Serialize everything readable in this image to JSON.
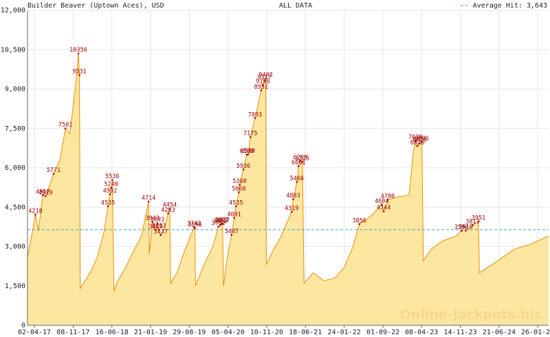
{
  "chart_data": {
    "type": "area",
    "title": "Builder Beaver (Uptown Aces), USD",
    "subtitle": "ALL DATA",
    "watermark": "Online-Jackpots.biz",
    "fill_color": "#fde7a0",
    "line_color": "#f08a00",
    "annotation_color": "#a00000",
    "grid": true,
    "average": {
      "value": 3643,
      "label": "Average Hit: 3,643",
      "color": "#3b9ccc"
    },
    "ylim": [
      0,
      12000
    ],
    "yticks": [
      0,
      {
        "value": 1500,
        "label": "1,500"
      },
      {
        "value": 3000,
        "label": "3,000"
      },
      {
        "value": 4500,
        "label": "4,500"
      },
      {
        "value": 6000,
        "label": "6,000"
      },
      {
        "value": 7500,
        "label": "7,500"
      },
      {
        "value": 9000,
        "label": "9,000"
      },
      {
        "value": 10500,
        "label": "10,500"
      },
      {
        "value": 12000,
        "label": "12,000"
      }
    ],
    "xlim": [
      "2017-02-22",
      "2025-03-29"
    ],
    "xticks": [
      {
        "value": "2017-04-02",
        "label": "02-04-17"
      },
      {
        "value": "2017-11-08",
        "label": "08-11-17"
      },
      {
        "value": "2018-06-16",
        "label": "16-06-18"
      },
      {
        "value": "2019-01-21",
        "label": "21-01-19"
      },
      {
        "value": "2019-08-29",
        "label": "29-08-19"
      },
      {
        "value": "2020-04-05",
        "label": "05-04-20"
      },
      {
        "value": "2020-11-10",
        "label": "10-11-20"
      },
      {
        "value": "2021-06-18",
        "label": "18-06-21"
      },
      {
        "value": "2022-01-24",
        "label": "24-01-22"
      },
      {
        "value": "2022-09-01",
        "label": "01-09-22"
      },
      {
        "value": "2023-04-08",
        "label": "08-04-23"
      },
      {
        "value": "2023-11-14",
        "label": "14-11-23"
      },
      {
        "value": "2024-06-21",
        "label": "21-06-24"
      },
      {
        "value": "2025-01-26",
        "label": "26-01-25"
      }
    ],
    "x": [
      "2017-02-22",
      "2017-03-20",
      "2017-04-08",
      "2017-04-25",
      "2017-05-20",
      "2017-06-05",
      "2017-06-20",
      "2017-07-20",
      "2017-08-25",
      "2017-09-25",
      "2017-10-20",
      "2017-11-20",
      "2017-12-08",
      "2017-12-14",
      "2017-12-18",
      "2018-01-15",
      "2018-02-20",
      "2018-03-25",
      "2018-04-30",
      "2018-05-25",
      "2018-06-05",
      "2018-06-12",
      "2018-06-18",
      "2018-06-28",
      "2018-07-20",
      "2018-09-01",
      "2018-10-15",
      "2018-12-01",
      "2019-01-10",
      "2019-01-14",
      "2019-02-01",
      "2019-02-20",
      "2019-03-01",
      "2019-03-10",
      "2019-03-20",
      "2019-04-10",
      "2019-05-01",
      "2019-05-10",
      "2019-05-15",
      "2019-06-20",
      "2019-08-01",
      "2019-09-25",
      "2019-09-30",
      "2019-10-03",
      "2019-11-20",
      "2020-01-10",
      "2020-02-10",
      "2020-02-20",
      "2020-02-28",
      "2020-03-05",
      "2020-03-10",
      "2020-04-01",
      "2020-04-25",
      "2020-05-10",
      "2020-05-20",
      "2020-06-05",
      "2020-06-10",
      "2020-07-01",
      "2020-07-20",
      "2020-07-28",
      "2020-08-10",
      "2020-09-05",
      "2020-10-10",
      "2020-10-20",
      "2020-10-28",
      "2020-11-05",
      "2020-11-08",
      "2020-12-20",
      "2021-02-01",
      "2021-03-10",
      "2021-04-01",
      "2021-04-10",
      "2021-05-01",
      "2021-05-10",
      "2021-05-20",
      "2021-06-01",
      "2021-06-10",
      "2021-08-01",
      "2021-10-01",
      "2021-12-01",
      "2022-01-24",
      "2022-03-15",
      "2022-04-20",
      "2022-07-01",
      "2022-08-25",
      "2022-09-05",
      "2022-09-28",
      "2022-12-01",
      "2023-01-27",
      "2023-02-20",
      "2023-03-04",
      "2023-03-15",
      "2023-03-28",
      "2023-04-10",
      "2023-04-18",
      "2023-06-01",
      "2023-08-01",
      "2023-10-20",
      "2023-11-20",
      "2023-12-15",
      "2024-01-01",
      "2024-01-23",
      "2024-02-25",
      "2024-03-01",
      "2024-06-01",
      "2024-09-15",
      "2024-12-20",
      "2025-03-29"
    ],
    "values": [
      2600,
      3500,
      4218,
      3600,
      4957,
      4919,
      5200,
      5771,
      6300,
      7501,
      7300,
      9000,
      10356,
      9531,
      1400,
      1700,
      2100,
      2600,
      3500,
      4535,
      4992,
      5240,
      5536,
      1300,
      1700,
      2200,
      2800,
      3400,
      4714,
      2700,
      3943,
      3629,
      3893,
      3653,
      3437,
      3700,
      4263,
      4454,
      1600,
      2000,
      2800,
      3743,
      3696,
      1500,
      2300,
      3000,
      3762,
      3822,
      3862,
      3877,
      1500,
      2600,
      3447,
      4091,
      4535,
      5068,
      5360,
      5936,
      6500,
      6510,
      7175,
      7893,
      8951,
      9156,
      9317,
      9403,
      2300,
      2900,
      3400,
      4000,
      4319,
      4803,
      5466,
      6061,
      6265,
      6225,
      1600,
      2000,
      1700,
      1800,
      2200,
      3000,
      3856,
      4200,
      4604,
      4344,
      4780,
      4900,
      4950,
      6600,
      7030,
      6826,
      6926,
      6986,
      2450,
      2900,
      3200,
      3400,
      3598,
      3610,
      3650,
      3817,
      3951,
      2000,
      2400,
      2900,
      3100,
      3400
    ],
    "annotations": {
      "x": [
        "2017-04-08",
        "2017-05-20",
        "2017-06-05",
        "2017-07-20",
        "2017-09-25",
        "2017-12-08",
        "2017-12-14",
        "2018-05-25",
        "2018-06-05",
        "2018-06-12",
        "2018-06-18",
        "2019-01-10",
        "2019-02-01",
        "2019-02-20",
        "2019-03-01",
        "2019-03-10",
        "2019-03-20",
        "2019-05-01",
        "2019-05-10",
        "2019-09-25",
        "2019-09-30",
        "2020-02-10",
        "2020-02-20",
        "2020-02-28",
        "2020-03-05",
        "2020-04-25",
        "2020-05-10",
        "2020-05-20",
        "2020-06-05",
        "2020-06-10",
        "2020-07-01",
        "2020-07-20",
        "2020-07-28",
        "2020-08-10",
        "2020-09-05",
        "2020-10-10",
        "2020-10-20",
        "2020-10-28",
        "2020-11-05",
        "2021-04-01",
        "2021-04-10",
        "2021-05-01",
        "2021-05-10",
        "2021-05-20",
        "2021-06-01",
        "2022-04-20",
        "2022-08-25",
        "2022-09-05",
        "2022-09-28",
        "2023-03-04",
        "2023-03-15",
        "2023-03-28",
        "2023-04-10",
        "2023-11-20",
        "2023-12-15",
        "2024-01-23",
        "2024-02-25"
      ],
      "values": [
        4218,
        4957,
        4919,
        5771,
        7501,
        10356,
        9531,
        4535,
        4992,
        5240,
        5536,
        4714,
        3943,
        3629,
        3893,
        3653,
        3437,
        4263,
        4454,
        3743,
        3696,
        3762,
        3822,
        3862,
        3877,
        3447,
        4091,
        4535,
        5068,
        5360,
        5936,
        6500,
        6510,
        7175,
        7893,
        8951,
        9156,
        9317,
        9403,
        4319,
        4803,
        5466,
        6061,
        6265,
        6225,
        3856,
        4604,
        4344,
        4780,
        7030,
        6826,
        6926,
        6986,
        3598,
        3610,
        3817,
        3951
      ]
    }
  }
}
